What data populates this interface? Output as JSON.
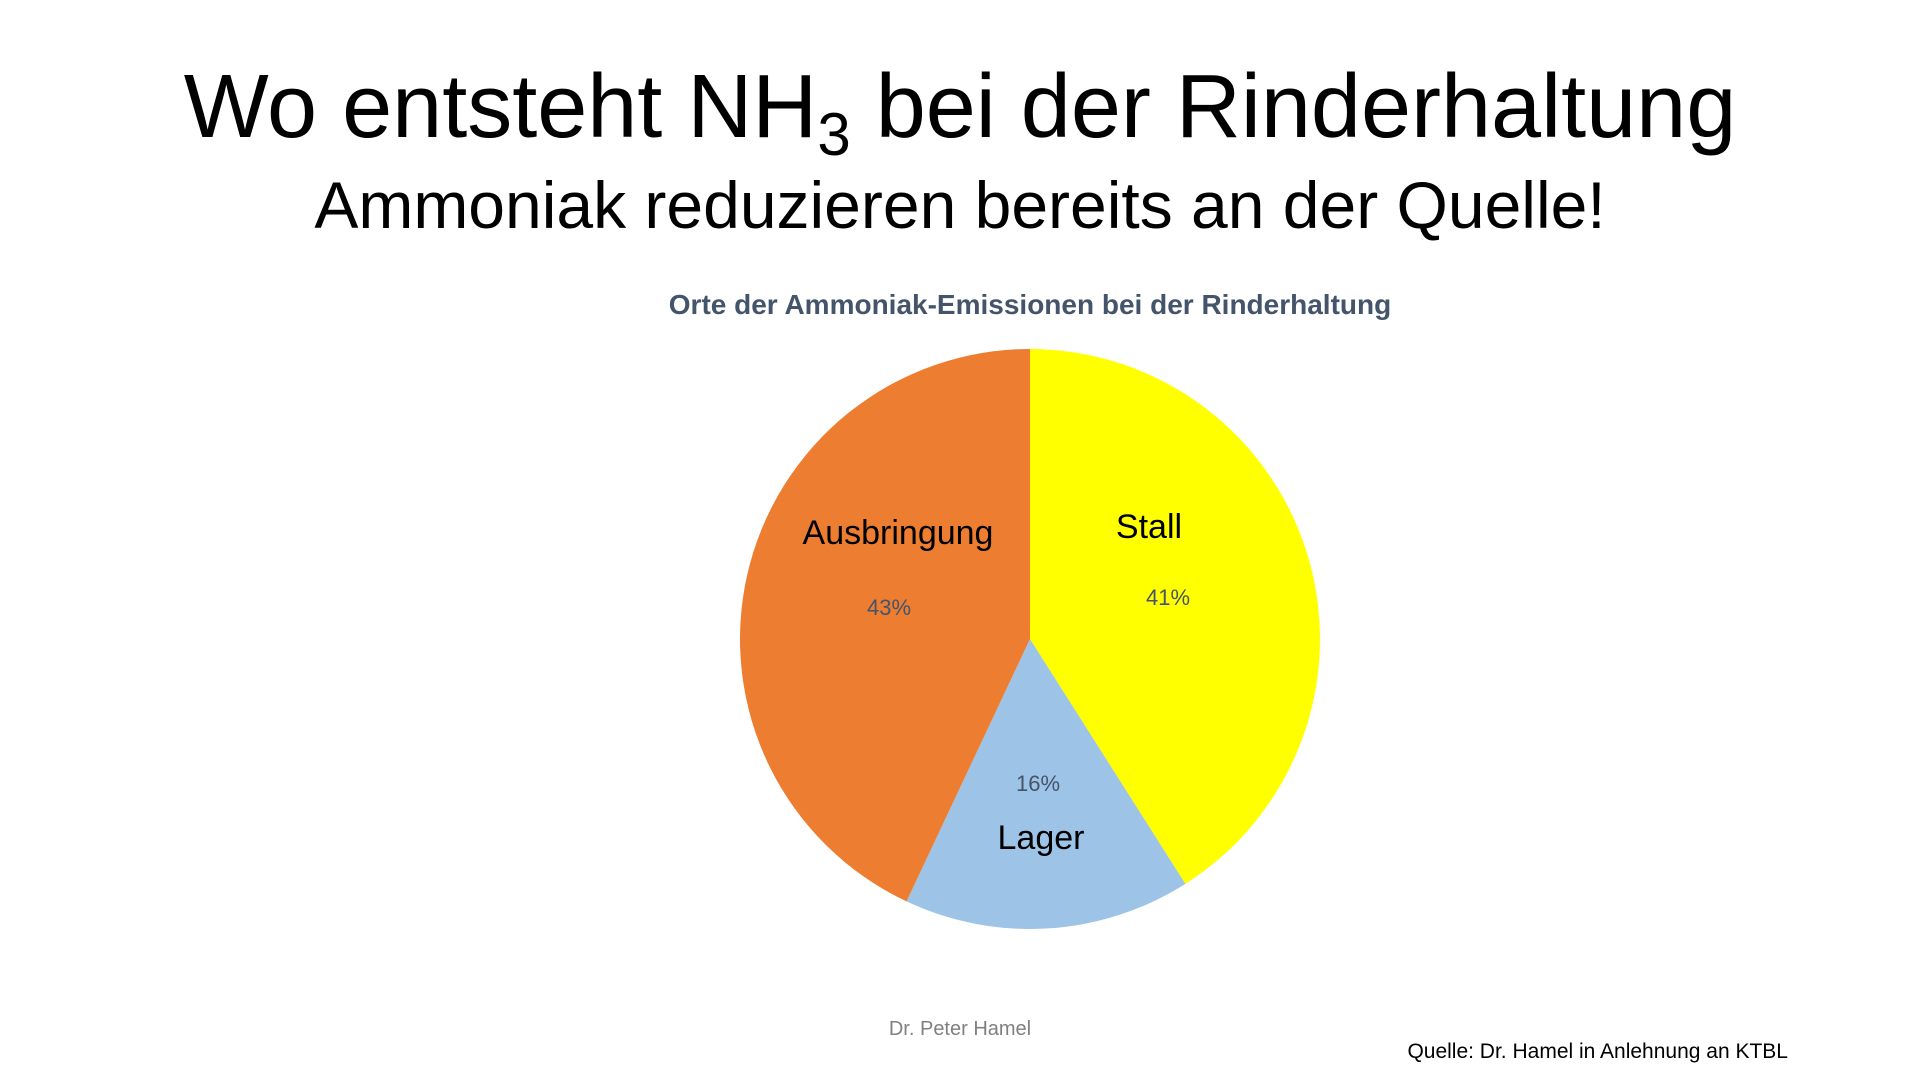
{
  "slide": {
    "title_main": "Wo entsteht NH",
    "title_sub": "3",
    "title_rest": " bei der Rinderhaltung",
    "subtitle": "Ammoniak reduzieren bereits an der Quelle!",
    "author": "Dr. Peter Hamel",
    "source": "Quelle: Dr. Hamel in Anlehnung an KTBL"
  },
  "chart_data": {
    "type": "pie",
    "title": "Orte der Ammoniak-Emissionen bei der Rinderhaltung",
    "start": "top, clockwise",
    "slices": [
      {
        "label": "Stall",
        "value": 41,
        "value_label": "41%",
        "color": "#ffff00"
      },
      {
        "label": "Lager",
        "value": 16,
        "value_label": "16%",
        "color": "#9dc3e6"
      },
      {
        "label": "Ausbringung",
        "value": 43,
        "value_label": "43%",
        "color": "#ed7d31"
      }
    ],
    "label_color": "#000000",
    "value_label_color": "#44546a",
    "legend": "none"
  }
}
